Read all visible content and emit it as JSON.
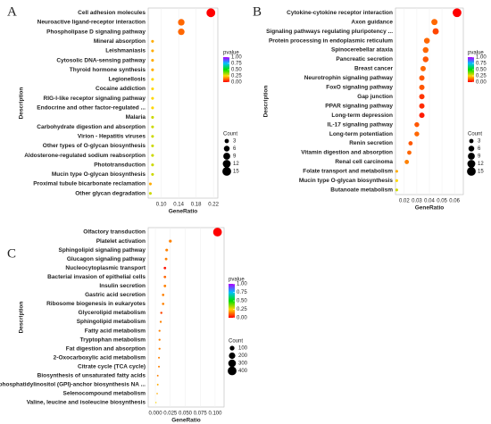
{
  "chart_data": [
    {
      "type": "scatter",
      "label": "A",
      "xlabel": "GeneRatio",
      "ylabel": "Description",
      "categories": [
        "Cell adhesion molecules",
        "Neuroactive ligand-receptor interaction",
        "Phospholipase D signaling pathway",
        "Mineral absorption",
        "Leishmaniasis",
        "Cytosolic DNA-sensing pathway",
        "Thyroid hormone synthesis",
        "Legionellosis",
        "Cocaine addiction",
        "RIG-I-like receptor signaling pathway",
        "Endocrine and other factor-regulated ...",
        "Malaria",
        "Carbohydrate digestion and absorption",
        "Virion - Hepatitis viruses",
        "Other types of O-glycan biosynthesis",
        "Aldosterone-regulated sodium reabsorption",
        "Phototransduction",
        "Mucin type O-glycan biosynthesis",
        "Proximal tubule bicarbonate reclamation",
        "Other glycan degradation"
      ],
      "values": [
        0.214,
        0.146,
        0.146,
        0.08,
        0.08,
        0.08,
        0.08,
        0.08,
        0.08,
        0.08,
        0.08,
        0.08,
        0.08,
        0.08,
        0.08,
        0.08,
        0.08,
        0.08,
        0.075,
        0.075
      ],
      "counts": [
        15,
        8,
        8,
        1,
        1,
        1,
        1,
        1,
        1,
        1,
        1,
        1,
        1,
        1,
        1,
        1,
        1,
        1,
        1,
        1
      ],
      "pvalues": [
        0.0,
        0.12,
        0.12,
        0.2,
        0.2,
        0.2,
        0.2,
        0.25,
        0.25,
        0.25,
        0.25,
        0.3,
        0.3,
        0.3,
        0.3,
        0.3,
        0.3,
        0.3,
        0.2,
        0.3
      ],
      "xlim": [
        0.07,
        0.23
      ],
      "xticks": [
        {
          "value": 0.1,
          "label": "0.10"
        },
        0.14,
        0.18,
        0.22
      ],
      "color_legend": {
        "title": "pvalue",
        "colors": [
          "#ff0000",
          "#ffd700",
          "#00e000",
          "#00bfff",
          "#b000ff"
        ],
        "ticks": [
          {
            "value": 1,
            "label": "1.00"
          },
          0.75,
          {
            "value": 0.5,
            "label": "0.50"
          },
          0.25,
          {
            "value": 0,
            "label": "0.00"
          }
        ]
      },
      "size_legend": {
        "title": "Count",
        "values": [
          3,
          6,
          9,
          12,
          15
        ]
      }
    },
    {
      "type": "scatter",
      "label": "B",
      "xlabel": "GeneRatio",
      "ylabel": "Description",
      "categories": [
        "Cytokine-cytokine receptor interaction",
        "Axon guidance",
        "Signaling pathways regulating pluripotency ...",
        "Protein processing in endoplasmic reticulum",
        "Spinocerebellar ataxia",
        "Pancreatic secretion",
        "Breast cancer",
        "Neurotrophin signaling pathway",
        "FoxO signaling pathway",
        "Gap junction",
        "PPAR signaling pathway",
        "Long-term depression",
        "IL-17 signaling pathway",
        "Long-term potentiation",
        "Renin secretion",
        "Vitamin digestion and absorption",
        "Renal cell carcinoma",
        "Folate transport and metabolism",
        "Mucin type O-glycan biosynthesis",
        "Butanoate metabolism"
      ],
      "values": [
        0.062,
        0.044,
        0.045,
        0.038,
        0.037,
        0.037,
        0.035,
        0.034,
        0.034,
        0.034,
        0.034,
        0.034,
        0.03,
        0.03,
        0.025,
        0.024,
        0.022,
        0.014,
        0.014,
        0.014
      ],
      "counts": [
        15,
        7,
        7,
        6,
        6,
        6,
        5,
        5,
        5,
        5,
        5,
        5,
        4,
        4,
        3,
        3,
        3,
        1,
        1,
        1
      ],
      "pvalues": [
        0.0,
        0.12,
        0.08,
        0.12,
        0.12,
        0.1,
        0.12,
        0.1,
        0.1,
        0.06,
        0.05,
        0.03,
        0.1,
        0.12,
        0.1,
        0.12,
        0.15,
        0.2,
        0.25,
        0.3
      ],
      "xlim": [
        0.013,
        0.067
      ],
      "xticks": [
        0.02,
        0.03,
        0.04,
        0.05,
        0.06
      ],
      "color_legend": {
        "title": "pvalue",
        "colors": [
          "#ff0000",
          "#ffd700",
          "#00e000",
          "#00bfff",
          "#b000ff"
        ],
        "ticks": [
          {
            "value": 1,
            "label": "1.00"
          },
          0.75,
          {
            "value": 0.5,
            "label": "0.50"
          },
          0.25,
          {
            "value": 0,
            "label": "0.00"
          }
        ]
      },
      "size_legend": {
        "title": "Count",
        "values": [
          3,
          6,
          9,
          12,
          15
        ]
      }
    },
    {
      "type": "scatter",
      "label": "C",
      "xlabel": "GeneRatio",
      "ylabel": "Description",
      "categories": [
        "Olfactory transduction",
        "Platelet activation",
        "Sphingolipid signaling pathway",
        "Glucagon signaling pathway",
        "Nucleocytoplasmic transport",
        "Bacterial invasion of epithelial cells",
        "Insulin secretion",
        "Gastric acid secretion",
        "Ribosome biogenesis in eukaryotes",
        "Glycerolipid metabolism",
        "Sphingolipid metabolism",
        "Fatty acid metabolism",
        "Tryptophan metabolism",
        "Fat digestion and absorption",
        "2-Oxocarboxylic acid metabolism",
        "Citrate cycle (TCA cycle)",
        "Biosynthesis of unsaturated fatty acids",
        "Glycosylphosphatidylinositol (GPI)-anchor biosynthesis NA ...",
        "Selenocompound metabolism",
        "Valine, leucine and isoleucine biosynthesis"
      ],
      "values": [
        0.104,
        0.025,
        0.019,
        0.018,
        0.016,
        0.016,
        0.016,
        0.013,
        0.013,
        0.01,
        0.009,
        0.007,
        0.007,
        0.007,
        0.006,
        0.006,
        0.004,
        0.004,
        0.003,
        0.001
      ],
      "counts": [
        400,
        30,
        25,
        22,
        20,
        20,
        20,
        18,
        18,
        14,
        12,
        10,
        10,
        10,
        8,
        8,
        6,
        6,
        4,
        2
      ],
      "pvalues": [
        0.0,
        0.15,
        0.15,
        0.15,
        0.02,
        0.12,
        0.15,
        0.15,
        0.15,
        0.08,
        0.15,
        0.15,
        0.15,
        0.15,
        0.15,
        0.15,
        0.15,
        0.2,
        0.2,
        0.25
      ],
      "xlim": [
        -0.012,
        0.115
      ],
      "xticks": [
        {
          "value": 0,
          "label": "0.000"
        },
        0.025,
        {
          "value": 0.05,
          "label": "0.050"
        },
        0.075,
        {
          "value": 0.1,
          "label": "0.100"
        }
      ],
      "color_legend": {
        "title": "pvalue",
        "colors": [
          "#ff0000",
          "#ffd700",
          "#00e000",
          "#00bfff",
          "#b000ff"
        ],
        "ticks": [
          {
            "value": 1,
            "label": "1.00"
          },
          0.75,
          {
            "value": 0.5,
            "label": "0.50"
          },
          0.25,
          {
            "value": 0,
            "label": "0.00"
          }
        ]
      },
      "size_legend": {
        "title": "Count",
        "values": [
          100,
          200,
          300,
          400
        ]
      }
    }
  ]
}
